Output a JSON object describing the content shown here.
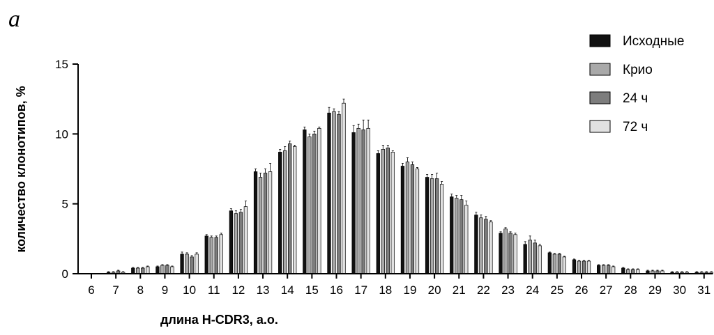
{
  "panel_label": "а",
  "chart_data": {
    "type": "bar",
    "xlabel": "длина H-CDR3, а.о.",
    "ylabel": "количество клонотипов, %",
    "ylim": [
      0,
      15
    ],
    "yticks": [
      "0",
      "5",
      "10",
      "15"
    ],
    "categories": [
      "6",
      "7",
      "8",
      "9",
      "10",
      "11",
      "12",
      "13",
      "14",
      "15",
      "16",
      "17",
      "18",
      "19",
      "20",
      "21",
      "22",
      "23",
      "24",
      "25",
      "26",
      "27",
      "28",
      "29",
      "30",
      "31"
    ],
    "legend_position": "top-right",
    "series": [
      {
        "name": "Исходные",
        "color": "#111111",
        "values": [
          0.0,
          0.1,
          0.4,
          0.5,
          1.4,
          2.7,
          4.5,
          7.3,
          8.7,
          10.3,
          11.5,
          10.1,
          8.6,
          7.7,
          6.9,
          5.5,
          4.2,
          2.9,
          2.1,
          1.5,
          1.0,
          0.6,
          0.4,
          0.2,
          0.1,
          0.1
        ],
        "errors": [
          0,
          0.05,
          0.05,
          0.05,
          0.15,
          0.1,
          0.15,
          0.2,
          0.2,
          0.2,
          0.4,
          0.5,
          0.2,
          0.2,
          0.2,
          0.2,
          0.2,
          0.1,
          0.2,
          0.05,
          0.05,
          0.05,
          0.05,
          0.05,
          0.05,
          0.05
        ]
      },
      {
        "name": "Крио",
        "color": "#a9a9a9",
        "values": [
          0.0,
          0.1,
          0.4,
          0.6,
          1.4,
          2.6,
          4.3,
          6.9,
          8.8,
          9.8,
          11.6,
          10.4,
          8.9,
          8.0,
          6.8,
          5.4,
          4.0,
          3.2,
          2.4,
          1.4,
          0.9,
          0.6,
          0.3,
          0.2,
          0.1,
          0.1
        ],
        "errors": [
          0,
          0.05,
          0.05,
          0.05,
          0.1,
          0.1,
          0.2,
          0.3,
          0.3,
          0.2,
          0.2,
          0.3,
          0.3,
          0.3,
          0.3,
          0.2,
          0.2,
          0.1,
          0.3,
          0.05,
          0.05,
          0.05,
          0.05,
          0.05,
          0.05,
          0.05
        ]
      },
      {
        "name": "24 ч",
        "color": "#7d7d7d",
        "values": [
          0.0,
          0.2,
          0.4,
          0.6,
          1.2,
          2.6,
          4.4,
          7.2,
          9.3,
          10.0,
          11.4,
          10.3,
          9.0,
          7.8,
          6.8,
          5.3,
          3.9,
          2.9,
          2.2,
          1.4,
          0.9,
          0.6,
          0.3,
          0.2,
          0.1,
          0.1
        ],
        "errors": [
          0,
          0.05,
          0.05,
          0.05,
          0.1,
          0.1,
          0.2,
          0.3,
          0.2,
          0.2,
          0.2,
          0.7,
          0.2,
          0.2,
          0.4,
          0.3,
          0.2,
          0.1,
          0.2,
          0.05,
          0.05,
          0.05,
          0.05,
          0.05,
          0.05,
          0.05
        ]
      },
      {
        "name": "72 ч",
        "color": "#e1e1e1",
        "values": [
          0.0,
          0.1,
          0.5,
          0.5,
          1.4,
          2.8,
          4.8,
          7.3,
          9.1,
          10.4,
          12.2,
          10.4,
          8.7,
          7.5,
          6.4,
          4.9,
          3.7,
          2.8,
          2.0,
          1.2,
          0.9,
          0.5,
          0.3,
          0.2,
          0.1,
          0.1
        ],
        "errors": [
          0,
          0.05,
          0.05,
          0.05,
          0.1,
          0.1,
          0.4,
          0.6,
          0.1,
          0.1,
          0.3,
          0.6,
          0.1,
          0.1,
          0.2,
          0.3,
          0.1,
          0.1,
          0.1,
          0.05,
          0.05,
          0.05,
          0.05,
          0.05,
          0.05,
          0.05
        ]
      }
    ]
  }
}
